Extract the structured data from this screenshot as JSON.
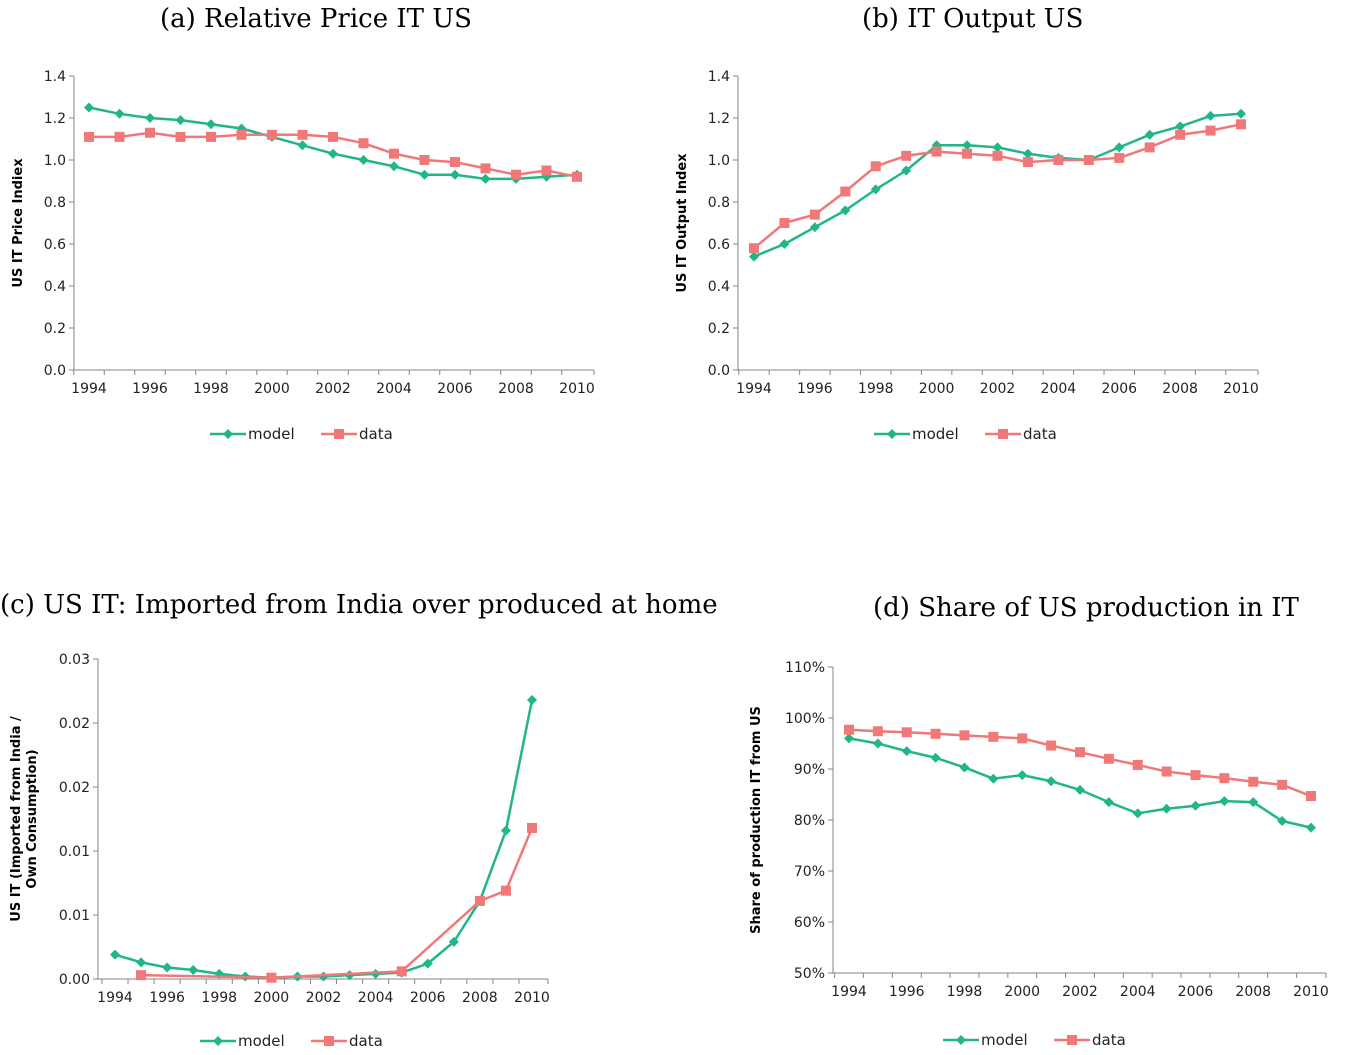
{
  "colors": {
    "model": "#20b68a",
    "data": "#f07878",
    "axis": "#868686"
  },
  "chart_data": [
    {
      "type": "line",
      "title": "(a) Relative Price IT US",
      "ylabel": "US IT Price Indiex",
      "xlabel": "",
      "x": [
        1994,
        1995,
        1996,
        1997,
        1998,
        1999,
        2000,
        2001,
        2002,
        2003,
        2004,
        2005,
        2006,
        2007,
        2008,
        2009,
        2010
      ],
      "xticks": [
        "1994",
        "1996",
        "1998",
        "2000",
        "2002",
        "2004",
        "2006",
        "2008",
        "2010"
      ],
      "yticks": [
        "0.0",
        "0.2",
        "0.4",
        "0.6",
        "0.8",
        "1.0",
        "1.2",
        "1.4"
      ],
      "ylim": [
        0,
        1.4
      ],
      "legend_position": "bottom",
      "series": [
        {
          "name": "model",
          "marker": "diamond",
          "values": [
            1.25,
            1.22,
            1.2,
            1.19,
            1.17,
            1.15,
            1.11,
            1.07,
            1.03,
            1.0,
            0.97,
            0.93,
            0.93,
            0.91,
            0.91,
            0.92,
            0.93
          ]
        },
        {
          "name": "data",
          "marker": "square",
          "values": [
            1.11,
            1.11,
            1.13,
            1.11,
            1.11,
            1.12,
            1.12,
            1.12,
            1.11,
            1.08,
            1.03,
            1.0,
            0.99,
            0.96,
            0.93,
            0.95,
            0.92
          ]
        }
      ]
    },
    {
      "type": "line",
      "title": "(b) IT Output US",
      "ylabel": "US IT Output Index",
      "xlabel": "",
      "x": [
        1994,
        1995,
        1996,
        1997,
        1998,
        1999,
        2000,
        2001,
        2002,
        2003,
        2004,
        2005,
        2006,
        2007,
        2008,
        2009,
        2010
      ],
      "xticks": [
        "1994",
        "1996",
        "1998",
        "2000",
        "2002",
        "2004",
        "2006",
        "2008",
        "2010"
      ],
      "yticks": [
        "0.0",
        "0.2",
        "0.4",
        "0.6",
        "0.8",
        "1.0",
        "1.2",
        "1.4"
      ],
      "ylim": [
        0,
        1.4
      ],
      "legend_position": "bottom",
      "series": [
        {
          "name": "model",
          "marker": "diamond",
          "values": [
            0.54,
            0.6,
            0.68,
            0.76,
            0.86,
            0.95,
            1.07,
            1.07,
            1.06,
            1.03,
            1.01,
            1.0,
            1.06,
            1.12,
            1.16,
            1.21,
            1.22
          ]
        },
        {
          "name": "data",
          "marker": "square",
          "values": [
            0.58,
            0.7,
            0.74,
            0.85,
            0.97,
            1.02,
            1.04,
            1.03,
            1.02,
            0.99,
            1.0,
            1.0,
            1.01,
            1.06,
            1.12,
            1.14,
            1.17
          ]
        }
      ]
    },
    {
      "type": "line",
      "title": "(c) US IT: Imported from India over produced at home",
      "ylabel": "US IT  (Imported from India / Own Consumption)",
      "xlabel": "",
      "x": [
        1994,
        1995,
        1996,
        1997,
        1998,
        1999,
        2000,
        2001,
        2002,
        2003,
        2004,
        2005,
        2006,
        2007,
        2008,
        2009,
        2010
      ],
      "xticks": [
        "1994",
        "1996",
        "1998",
        "2000",
        "2002",
        "2004",
        "2006",
        "2008",
        "2010"
      ],
      "yticks": [
        "0.00",
        "0.01",
        "0.01",
        "0.02",
        "0.02",
        "0.03"
      ],
      "ylim": [
        0,
        0.025
      ],
      "legend_position": "bottom",
      "series": [
        {
          "name": "model",
          "marker": "diamond",
          "values": [
            0.0019,
            0.0013,
            0.0009,
            0.0007,
            0.0004,
            0.0002,
            0.0001,
            0.0002,
            0.0002,
            0.0003,
            0.0004,
            0.0005,
            0.0012,
            0.0029,
            0.0061,
            0.0116,
            0.0218
          ]
        },
        {
          "name": "data",
          "marker": "square",
          "values": [
            null,
            0.0003,
            null,
            null,
            null,
            null,
            0.0001,
            null,
            null,
            null,
            null,
            0.0006,
            null,
            null,
            0.0061,
            0.0069,
            0.0118
          ]
        }
      ]
    },
    {
      "type": "line",
      "title": "(d) Share of US production in IT",
      "ylabel": "Share of production IT from US",
      "xlabel": "",
      "x": [
        1994,
        1995,
        1996,
        1997,
        1998,
        1999,
        2000,
        2001,
        2002,
        2003,
        2004,
        2005,
        2006,
        2007,
        2008,
        2009,
        2010
      ],
      "xticks": [
        "1994",
        "1996",
        "1998",
        "2000",
        "2002",
        "2004",
        "2006",
        "2008",
        "2010"
      ],
      "yticks": [
        "50%",
        "60%",
        "70%",
        "80%",
        "90%",
        "100%",
        "110%"
      ],
      "ylim": [
        50,
        110
      ],
      "legend_position": "bottom",
      "series": [
        {
          "name": "model",
          "marker": "diamond",
          "values": [
            96.0,
            95.0,
            93.5,
            92.2,
            90.3,
            88.1,
            88.8,
            87.6,
            85.9,
            83.5,
            81.3,
            82.2,
            82.8,
            83.7,
            83.5,
            79.8,
            78.5
          ]
        },
        {
          "name": "data",
          "marker": "square",
          "values": [
            97.7,
            97.4,
            97.2,
            96.9,
            96.6,
            96.3,
            96.0,
            94.6,
            93.3,
            92.0,
            90.8,
            89.5,
            88.8,
            88.2,
            87.5,
            86.9,
            84.7
          ]
        }
      ]
    }
  ]
}
